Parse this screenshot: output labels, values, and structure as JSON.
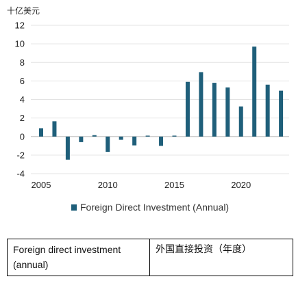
{
  "chart_data": {
    "type": "bar",
    "unit_label": "十亿美元",
    "x": [
      2005,
      2006,
      2007,
      2008,
      2009,
      2010,
      2011,
      2012,
      2013,
      2014,
      2015,
      2016,
      2017,
      2018,
      2019,
      2020,
      2021,
      2022,
      2023
    ],
    "series": [
      {
        "name": "Foreign Direct Investment (Annual)",
        "color": "#1f5f7a",
        "values": [
          0.9,
          1.65,
          -2.5,
          -0.6,
          0.15,
          -1.65,
          -0.35,
          -0.95,
          0.1,
          -1.0,
          0.1,
          5.9,
          6.95,
          5.8,
          5.3,
          3.25,
          9.7,
          5.6,
          4.95
        ]
      }
    ],
    "ylim": [
      -4,
      12
    ],
    "yticks": [
      -4,
      -2,
      0,
      2,
      4,
      6,
      8,
      10,
      12
    ],
    "xticks": [
      2005,
      2010,
      2015,
      2020
    ],
    "grid": true,
    "legend_position": "bottom"
  },
  "legend": {
    "label": "Foreign Direct Investment (Annual)"
  },
  "table": {
    "english": "Foreign direct investment (annual)",
    "chinese": "外国直接投资（年度）"
  }
}
